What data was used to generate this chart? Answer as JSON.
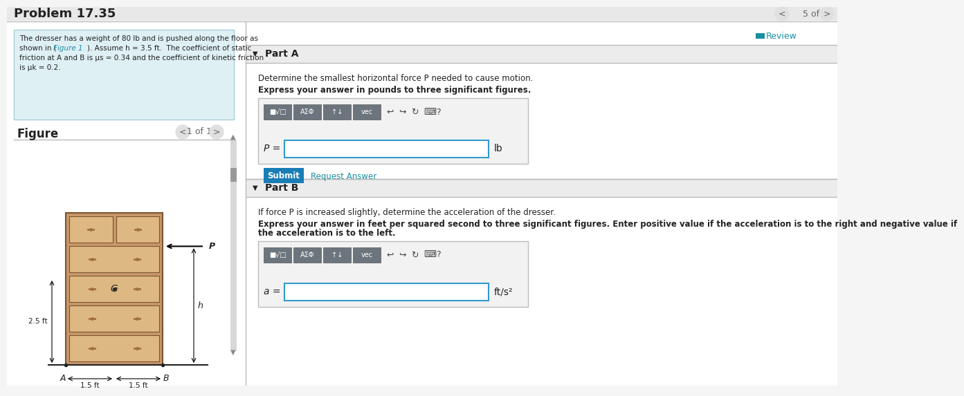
{
  "title": "Problem 17.35",
  "bg_color": "#f5f5f5",
  "white": "#ffffff",
  "light_blue_bg": "#dff0f5",
  "teal": "#1a8fa0",
  "submit_blue": "#1a7db5",
  "dark_text": "#222222",
  "gray_text": "#666666",
  "light_gray": "#cccccc",
  "dresser_body": "#c8976a",
  "dresser_dark": "#a07040",
  "dresser_light": "#ddb882",
  "dresser_outline": "#7a5530",
  "problem_text": "Problem 17.35",
  "figure_label": "Figure",
  "nav_text": "1 of 1",
  "part_a_title": "Part A",
  "part_a_desc": "Determine the smallest horizontal force P needed to cause motion.",
  "part_a_bold": "Express your answer in pounds to three significant figures.",
  "part_a_unit": "lb",
  "submit_text": "Submit",
  "request_text": "Request Answer",
  "part_b_title": "Part B",
  "part_b_desc": "If force P is increased slightly, determine the acceleration of the dresser.",
  "part_b_bold1": "Express your answer in feet per squared second to three significant figures. Enter positive value if the acceleration is to the right and negative value if",
  "part_b_bold2": "the acceleration is to the left.",
  "part_b_unit": "ft/s²",
  "page_nav": "5 of 8",
  "review_text": "Review",
  "desc_line1": "The dresser has a weight of 80 lb and is pushed along the floor as",
  "desc_line2a": "shown in (",
  "desc_line2b": "Figure 1",
  "desc_line2c": "). Assume h = 3.5 ft.  The coefficient of static",
  "desc_line3": "friction at A and B is μs = 0.34 and the coefficient of kinetic friction",
  "desc_line4": "is μk = 0.2."
}
